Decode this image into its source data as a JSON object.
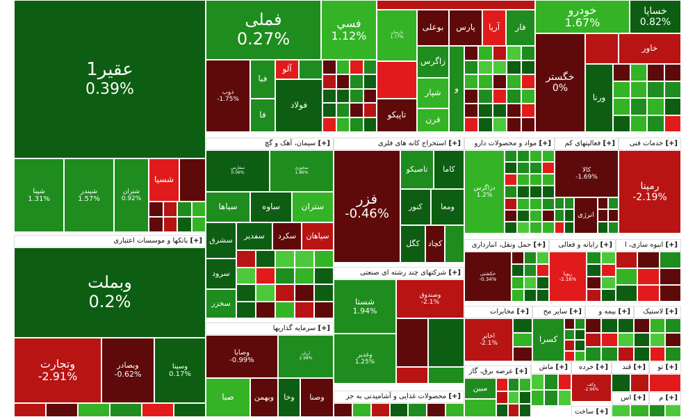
{
  "colors": {
    "dg": "#0d5e12",
    "g": "#1e8c1e",
    "lg": "#34b326",
    "vlg": "#4cc93a",
    "dr": "#5e0a0a",
    "r": "#b81414",
    "br": "#e11b1b"
  },
  "chart_data": {
    "type": "treemap",
    "title": "",
    "sectors": [
      {
        "name": "بانکها و موسسات اعتباری",
        "items": [
          {
            "symbol": "وبملت",
            "change": "0.2%"
          },
          {
            "symbol": "وتجارت",
            "change": "-2.91%"
          },
          {
            "symbol": "وبصادر",
            "change": "-0.62%"
          },
          {
            "symbol": "وسینا",
            "change": "0.17%"
          }
        ]
      },
      {
        "name": "سیمان، آهک و گچ",
        "items": [
          {
            "symbol": "سفارس",
            "change": "0.06%"
          },
          {
            "symbol": "سخوزی",
            "change": "1.86%"
          },
          {
            "symbol": "سیاها",
            "change": ""
          },
          {
            "symbol": "ساوه",
            "change": ""
          },
          {
            "symbol": "ستران",
            "change": ""
          },
          {
            "symbol": "سشرق",
            "change": ""
          },
          {
            "symbol": "سفدیر",
            "change": ""
          },
          {
            "symbol": "سکرد",
            "change": ""
          },
          {
            "symbol": "سپاهان",
            "change": ""
          },
          {
            "symbol": "سرود",
            "change": ""
          },
          {
            "symbol": "سخزر",
            "change": ""
          }
        ]
      },
      {
        "name": "استخراج کانه های فلزی",
        "items": [
          {
            "symbol": "فزر",
            "change": "-0.46%"
          },
          {
            "symbol": "کاما",
            "change": ""
          },
          {
            "symbol": "تاصیکو",
            "change": ""
          },
          {
            "symbol": "ومعا",
            "change": ""
          },
          {
            "symbol": "کنور",
            "change": ""
          },
          {
            "symbol": "کچاد",
            "change": ""
          },
          {
            "symbol": "کگل",
            "change": ""
          }
        ]
      },
      {
        "name": "شرکتهای چند رشته ای صنعتی",
        "items": [
          {
            "symbol": "شستا",
            "change": "1.94%"
          },
          {
            "symbol": "وصندوق",
            "change": "-2.1%"
          },
          {
            "symbol": "وغدیر",
            "change": "1.25%"
          }
        ]
      },
      {
        "name": "سرمایه گذاریها",
        "items": [
          {
            "symbol": "وصایا",
            "change": "-0.99%"
          },
          {
            "symbol": "اریان",
            "change": "2.98%"
          },
          {
            "symbol": "صبا",
            "change": ""
          },
          {
            "symbol": "وبهمن",
            "change": ""
          },
          {
            "symbol": "وخا",
            "change": ""
          },
          {
            "symbol": "وصنا",
            "change": ""
          }
        ]
      },
      {
        "name": "مواد و محصولات دارو",
        "items": [
          {
            "symbol": "دزاگرس",
            "change": "1.2%"
          }
        ]
      },
      {
        "name": "فعالیتهای کم",
        "items": [
          {
            "symbol": "کالا",
            "change": "-1.69%"
          },
          {
            "symbol": "انرژی",
            "change": ""
          }
        ]
      },
      {
        "name": "خدمات فنی",
        "items": [
          {
            "symbol": "رمپنا",
            "change": "-2.19%"
          }
        ]
      },
      {
        "name": "حمل ونقل، انبارداری",
        "items": [
          {
            "symbol": "حکشتی",
            "change": "-0.34%"
          }
        ]
      },
      {
        "name": "رایانه و فعالی",
        "items": [
          {
            "symbol": "رپویا",
            "change": "-2.16%"
          }
        ]
      },
      {
        "name": "انبوه سازی، ا",
        "items": []
      },
      {
        "name": "مخابرات",
        "items": [
          {
            "symbol": "اخابر",
            "change": "-2.1%"
          }
        ]
      },
      {
        "name": "سایر مح",
        "items": [
          {
            "symbol": "کسرا",
            "change": ""
          }
        ]
      },
      {
        "name": "بیمه و",
        "items": []
      },
      {
        "name": "لاستیک",
        "items": []
      },
      {
        "name": "محصولات غذایی و آشامیدنی به جز",
        "items": []
      },
      {
        "name": "عرضه برق، گاز",
        "items": [
          {
            "symbol": "مبین",
            "change": ""
          }
        ]
      },
      {
        "name": "ماش",
        "items": []
      },
      {
        "name": "خرده",
        "items": [
          {
            "symbol": "وکف",
            "change": "-2.96%"
          }
        ]
      },
      {
        "name": "قند",
        "items": []
      },
      {
        "name": "تو",
        "items": []
      },
      {
        "name": "ساخت",
        "items": []
      },
      {
        "name": "اس",
        "items": []
      },
      {
        "name": "م",
        "items": []
      },
      {
        "name": "other",
        "items": [
          {
            "symbol": "عقیر1",
            "change": "0.39%"
          },
          {
            "symbol": "شپنا",
            "change": "1.31%"
          },
          {
            "symbol": "شبندر",
            "change": "1.57%"
          },
          {
            "symbol": "شتران",
            "change": "0.92%"
          },
          {
            "symbol": "شسپا",
            "change": ""
          },
          {
            "symbol": "ذوب",
            "change": "-1.75%"
          },
          {
            "symbol": "فولاد",
            "change": ""
          },
          {
            "symbol": "فبا",
            "change": ""
          },
          {
            "symbol": "آلو",
            "change": ""
          },
          {
            "symbol": "فا",
            "change": ""
          },
          {
            "symbol": "فملی",
            "change": "0.27%"
          },
          {
            "symbol": "فسي",
            "change": "1.12%"
          },
          {
            "symbol": "پارسان",
            "change": "1.77%"
          },
          {
            "symbol": "تاپیکو",
            "change": ""
          },
          {
            "symbol": "بوعلی",
            "change": ""
          },
          {
            "symbol": "پارس",
            "change": ""
          },
          {
            "symbol": "آریا",
            "change": ""
          },
          {
            "symbol": "فار",
            "change": ""
          },
          {
            "symbol": "زاگرس",
            "change": ""
          },
          {
            "symbol": "شپار",
            "change": ""
          },
          {
            "symbol": "قرن",
            "change": ""
          },
          {
            "symbol": "و",
            "change": ""
          },
          {
            "symbol": "خگستر",
            "change": "0%"
          },
          {
            "symbol": "ورنا",
            "change": ""
          },
          {
            "symbol": "خاور",
            "change": ""
          },
          {
            "symbol": "خودرو",
            "change": "1.67%"
          },
          {
            "symbol": "خساپا",
            "change": "0.82%"
          }
        ]
      }
    ],
    "header_prefix": "[+]"
  }
}
